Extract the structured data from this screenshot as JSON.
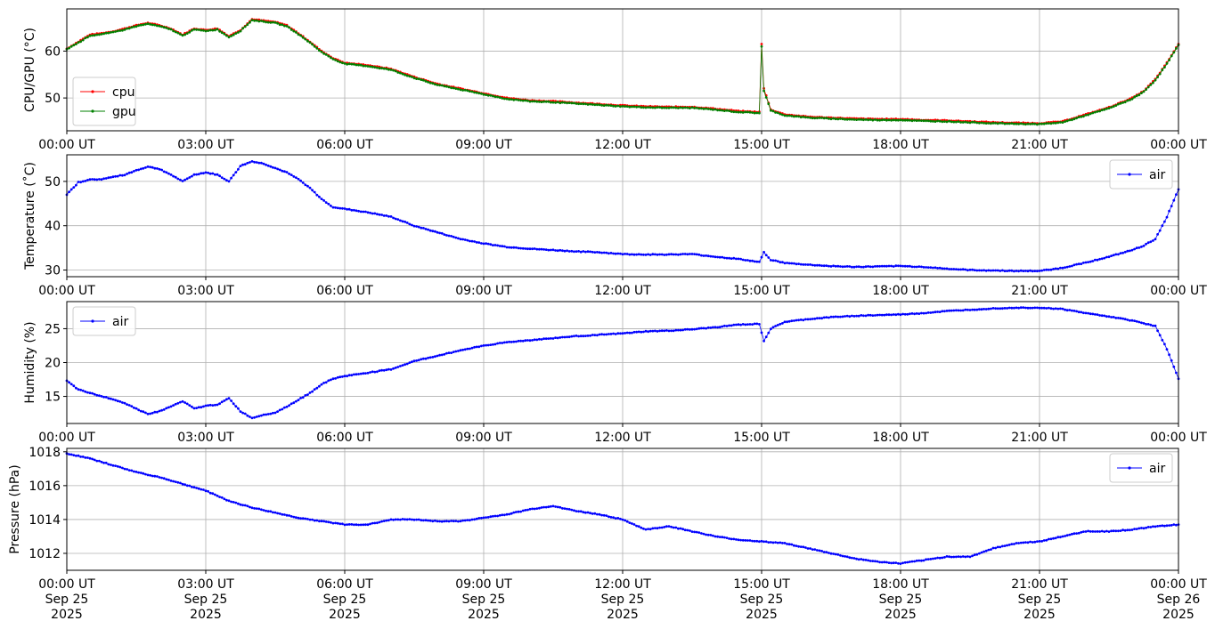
{
  "chart_data": [
    {
      "type": "line",
      "ylabel": "CPU/GPU (°C)",
      "ylim": [
        43,
        69
      ],
      "yticks": [
        50,
        60
      ],
      "xlim": [
        0,
        24
      ],
      "xticks": [
        0,
        3,
        6,
        9,
        12,
        15,
        18,
        21,
        24
      ],
      "xtick_labels": [
        "00:00 UT",
        "03:00 UT",
        "06:00 UT",
        "09:00 UT",
        "12:00 UT",
        "15:00 UT",
        "18:00 UT",
        "21:00 UT",
        "00:00 UT"
      ],
      "grid": true,
      "legend_position": "lower-left",
      "series": [
        {
          "name": "cpu",
          "color": "#ff0000",
          "x": [
            0,
            0.25,
            0.5,
            0.75,
            1.0,
            1.25,
            1.5,
            1.75,
            2.0,
            2.25,
            2.5,
            2.75,
            3.0,
            3.25,
            3.5,
            3.75,
            4.0,
            4.25,
            4.5,
            4.75,
            5.0,
            5.25,
            5.5,
            5.75,
            6.0,
            6.5,
            7.0,
            7.5,
            8.0,
            8.5,
            9.0,
            9.5,
            10.0,
            10.5,
            11.0,
            11.5,
            12.0,
            12.5,
            13.0,
            13.5,
            14.0,
            14.5,
            14.95,
            15.0,
            15.05,
            15.2,
            15.5,
            16.0,
            16.5,
            17.0,
            17.5,
            18.0,
            18.5,
            19.0,
            19.5,
            20.0,
            20.5,
            21.0,
            21.5,
            22.0,
            22.5,
            23.0,
            23.25,
            23.5,
            23.75,
            24.0
          ],
          "values": [
            60.5,
            62,
            63.5,
            63.8,
            64.2,
            64.8,
            65.5,
            66,
            65.5,
            64.8,
            63.5,
            64.8,
            64.5,
            64.8,
            63.2,
            64.5,
            66.8,
            66.5,
            66.2,
            65.5,
            63.8,
            62,
            60,
            58.5,
            57.5,
            57,
            56.2,
            54.5,
            53,
            52,
            51,
            50,
            49.5,
            49.3,
            49,
            48.7,
            48.4,
            48.2,
            48.1,
            48.1,
            47.7,
            47.2,
            47,
            61.5,
            52,
            47.5,
            46.5,
            46,
            45.8,
            45.6,
            45.5,
            45.5,
            45.3,
            45.2,
            45,
            44.8,
            44.7,
            44.6,
            45,
            46.5,
            48,
            50,
            51.5,
            54,
            57.5,
            61.5
          ]
        },
        {
          "name": "gpu",
          "color": "#008000",
          "x": [
            0,
            0.25,
            0.5,
            0.75,
            1.0,
            1.25,
            1.5,
            1.75,
            2.0,
            2.25,
            2.5,
            2.75,
            3.0,
            3.25,
            3.5,
            3.75,
            4.0,
            4.25,
            4.5,
            4.75,
            5.0,
            5.25,
            5.5,
            5.75,
            6.0,
            6.5,
            7.0,
            7.5,
            8.0,
            8.5,
            9.0,
            9.5,
            10.0,
            10.5,
            11.0,
            11.5,
            12.0,
            12.5,
            13.0,
            13.5,
            14.0,
            14.5,
            14.95,
            15.0,
            15.05,
            15.2,
            15.5,
            16.0,
            16.5,
            17.0,
            17.5,
            18.0,
            18.5,
            19.0,
            19.5,
            20.0,
            20.5,
            21.0,
            21.5,
            22.0,
            22.5,
            23.0,
            23.25,
            23.5,
            23.75,
            24.0
          ],
          "values": [
            60.4,
            61.8,
            63.3,
            63.6,
            64,
            64.6,
            65.3,
            65.8,
            65.3,
            64.6,
            63.3,
            64.6,
            64.3,
            64.6,
            63,
            64.3,
            66.6,
            66.3,
            66,
            65.3,
            63.6,
            61.8,
            59.8,
            58.3,
            57.3,
            56.8,
            56,
            54.3,
            52.8,
            51.8,
            50.8,
            49.8,
            49.3,
            49.1,
            48.8,
            48.5,
            48.2,
            48,
            47.9,
            47.9,
            47.5,
            47,
            46.8,
            61,
            51.5,
            47.3,
            46.3,
            45.8,
            45.6,
            45.4,
            45.3,
            45.3,
            45.1,
            45,
            44.8,
            44.6,
            44.5,
            44.4,
            44.8,
            46.3,
            47.8,
            49.8,
            51.3,
            53.8,
            57.3,
            61.3
          ]
        }
      ]
    },
    {
      "type": "line",
      "ylabel": "Temperature (˚C)",
      "ylim": [
        28.5,
        56
      ],
      "yticks": [
        30,
        40,
        50
      ],
      "xlim": [
        0,
        24
      ],
      "xticks": [
        0,
        3,
        6,
        9,
        12,
        15,
        18,
        21,
        24
      ],
      "xtick_labels": [
        "00:00 UT",
        "03:00 UT",
        "06:00 UT",
        "09:00 UT",
        "12:00 UT",
        "15:00 UT",
        "18:00 UT",
        "21:00 UT",
        "00:00 UT"
      ],
      "grid": true,
      "legend_position": "upper-right",
      "series": [
        {
          "name": "air",
          "color": "#0000ff",
          "x": [
            0,
            0.25,
            0.5,
            0.75,
            1.0,
            1.25,
            1.5,
            1.75,
            2.0,
            2.25,
            2.5,
            2.75,
            3.0,
            3.25,
            3.5,
            3.75,
            4.0,
            4.25,
            4.5,
            4.75,
            5.0,
            5.25,
            5.5,
            5.75,
            6.0,
            6.5,
            7.0,
            7.5,
            8.0,
            8.5,
            9.0,
            9.5,
            10.0,
            10.5,
            11.0,
            11.5,
            12.0,
            12.5,
            13.0,
            13.5,
            14.0,
            14.5,
            14.95,
            15.05,
            15.2,
            15.5,
            16.0,
            16.5,
            17.0,
            17.5,
            18.0,
            18.5,
            19.0,
            19.5,
            20.0,
            20.5,
            21.0,
            21.5,
            22.0,
            22.5,
            23.0,
            23.25,
            23.5,
            23.75,
            24.0
          ],
          "values": [
            47,
            49.8,
            50.4,
            50.5,
            51,
            51.5,
            52.5,
            53.3,
            52.8,
            51.5,
            50,
            51.5,
            52,
            51.5,
            50,
            53.5,
            54.5,
            54,
            53,
            52,
            50.5,
            48.5,
            46,
            44.2,
            43.8,
            43,
            42,
            40,
            38.5,
            37,
            36,
            35.2,
            34.8,
            34.5,
            34.2,
            34,
            33.6,
            33.5,
            33.5,
            33.6,
            33,
            32.5,
            31.8,
            34,
            32.3,
            31.6,
            31.2,
            30.9,
            30.7,
            30.8,
            30.9,
            30.7,
            30.3,
            30,
            29.9,
            29.8,
            29.8,
            30.5,
            31.7,
            33,
            34.5,
            35.5,
            37,
            42,
            48.2
          ]
        }
      ]
    },
    {
      "type": "line",
      "ylabel": "Humidity (%)",
      "ylim": [
        11,
        29
      ],
      "yticks": [
        15,
        20,
        25
      ],
      "xlim": [
        0,
        24
      ],
      "xticks": [
        0,
        3,
        6,
        9,
        12,
        15,
        18,
        21,
        24
      ],
      "xtick_labels": [
        "00:00 UT",
        "03:00 UT",
        "06:00 UT",
        "09:00 UT",
        "12:00 UT",
        "15:00 UT",
        "18:00 UT",
        "21:00 UT",
        "00:00 UT"
      ],
      "grid": true,
      "legend_position": "upper-left",
      "series": [
        {
          "name": "air",
          "color": "#0000ff",
          "x": [
            0,
            0.25,
            0.5,
            0.75,
            1.0,
            1.25,
            1.5,
            1.75,
            2.0,
            2.25,
            2.5,
            2.75,
            3.0,
            3.25,
            3.5,
            3.75,
            4.0,
            4.25,
            4.5,
            4.75,
            5.0,
            5.25,
            5.5,
            5.75,
            6.0,
            6.5,
            7.0,
            7.5,
            8.0,
            8.5,
            9.0,
            9.5,
            10.0,
            10.5,
            11.0,
            11.5,
            12.0,
            12.5,
            13.0,
            13.5,
            14.0,
            14.5,
            14.95,
            15.05,
            15.2,
            15.5,
            16.0,
            16.5,
            17.0,
            17.5,
            18.0,
            18.5,
            19.0,
            19.5,
            20.0,
            20.5,
            21.0,
            21.5,
            22.0,
            22.5,
            23.0,
            23.25,
            23.5,
            23.75,
            24.0
          ],
          "values": [
            17.3,
            16,
            15.5,
            15,
            14.6,
            14,
            13.2,
            12.4,
            12.8,
            13.5,
            14.3,
            13.2,
            13.6,
            13.8,
            14.7,
            12.8,
            11.8,
            12.3,
            12.6,
            13.5,
            14.5,
            15.5,
            16.8,
            17.6,
            18,
            18.5,
            19,
            20.2,
            21,
            21.8,
            22.5,
            23,
            23.3,
            23.6,
            23.9,
            24.1,
            24.3,
            24.6,
            24.7,
            24.9,
            25.2,
            25.6,
            25.7,
            23.2,
            25,
            26,
            26.4,
            26.7,
            26.9,
            27,
            27.1,
            27.3,
            27.6,
            27.8,
            28,
            28.1,
            28.1,
            27.9,
            27.3,
            26.8,
            26.2,
            25.8,
            25.4,
            22,
            17.6
          ]
        }
      ]
    },
    {
      "type": "line",
      "ylabel": "Pressure (hPa)",
      "ylim": [
        1011,
        1018.2
      ],
      "yticks": [
        1012,
        1014,
        1016,
        1018
      ],
      "xlim": [
        0,
        24
      ],
      "xticks": [
        0,
        3,
        6,
        9,
        12,
        15,
        18,
        21,
        24
      ],
      "xtick_labels": [
        "00:00 UT\nSep 25\n2025",
        "03:00 UT\nSep 25\n2025",
        "06:00 UT\nSep 25\n2025",
        "09:00 UT\nSep 25\n2025",
        "12:00 UT\nSep 25\n2025",
        "15:00 UT\nSep 25\n2025",
        "18:00 UT\nSep 25\n2025",
        "21:00 UT\nSep 25\n2025",
        "00:00 UT\nSep 26\n2025"
      ],
      "grid": true,
      "legend_position": "upper-right",
      "series": [
        {
          "name": "air",
          "color": "#0000ff",
          "x": [
            0,
            0.5,
            1.0,
            1.5,
            2.0,
            2.5,
            3.0,
            3.5,
            4.0,
            4.5,
            5.0,
            5.5,
            6.0,
            6.5,
            7.0,
            7.5,
            8.0,
            8.5,
            9.0,
            9.5,
            10.0,
            10.5,
            11.0,
            11.5,
            12.0,
            12.5,
            13.0,
            13.5,
            14.0,
            14.5,
            15.0,
            15.5,
            16.0,
            16.5,
            17.0,
            17.5,
            18.0,
            18.5,
            19.0,
            19.5,
            20.0,
            20.5,
            21.0,
            21.5,
            22.0,
            22.5,
            23.0,
            23.5,
            24.0
          ],
          "values": [
            1017.9,
            1017.6,
            1017.2,
            1016.8,
            1016.5,
            1016.1,
            1015.7,
            1015.1,
            1014.7,
            1014.4,
            1014.1,
            1013.9,
            1013.7,
            1013.7,
            1014,
            1014,
            1013.9,
            1013.9,
            1014.1,
            1014.3,
            1014.6,
            1014.8,
            1014.5,
            1014.3,
            1014,
            1013.4,
            1013.6,
            1013.3,
            1013,
            1012.8,
            1012.7,
            1012.6,
            1012.3,
            1012,
            1011.7,
            1011.5,
            1011.4,
            1011.6,
            1011.8,
            1011.8,
            1012.3,
            1012.6,
            1012.7,
            1013,
            1013.3,
            1013.3,
            1013.4,
            1013.6,
            1013.7
          ]
        }
      ]
    }
  ]
}
